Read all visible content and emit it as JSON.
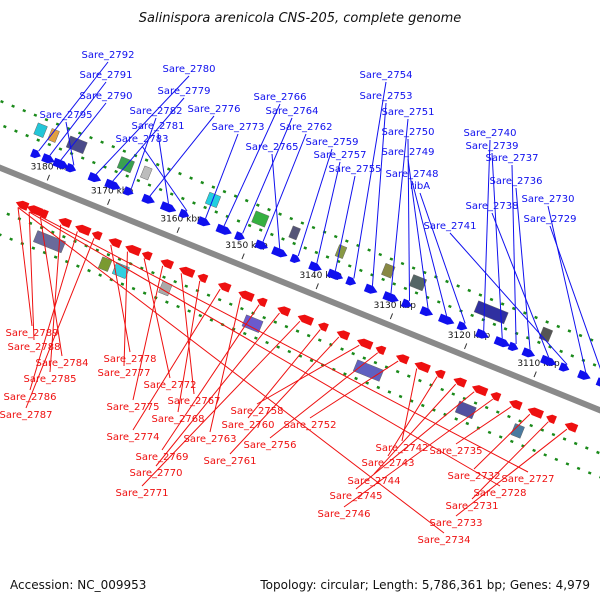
{
  "title": "Salinispora arenicola CNS-205, complete genome",
  "footer": {
    "accession": "Accession: NC_009953",
    "summary": "Topology: circular; Length: 5,786,361 bp; Genes: 4,979"
  },
  "colors": {
    "forward": "#1010ee",
    "reverse": "#ee1010",
    "axis": "#8a8a8a",
    "tick": "#1a8a1a"
  },
  "ticks": [
    "3180 kbp",
    "3170 kbp",
    "3160 kbp",
    "3150 kbp",
    "3140 kbp",
    "3130 kbp",
    "3120 kbp",
    "3110 kbp"
  ],
  "forward_genes": [
    "Sare_2792",
    "Sare_2791",
    "Sare_2790",
    "Sare_2795",
    "Sare_2780",
    "Sare_2779",
    "Sare_2782",
    "Sare_2776",
    "Sare_2781",
    "Sare_2783",
    "Sare_2773",
    "Sare_2766",
    "Sare_2764",
    "Sare_2762",
    "Sare_2765",
    "Sare_2759",
    "Sare_2757",
    "Sare_2755",
    "Sare_2754",
    "Sare_2753",
    "Sare_2751",
    "Sare_2750",
    "Sare_2749",
    "Sare_2748",
    "ribA",
    "Sare_2740",
    "Sare_2739",
    "Sare_2737",
    "Sare_2736",
    "Sare_2738",
    "Sare_2741",
    "Sare_2730",
    "Sare_2729"
  ],
  "reverse_genes": [
    "Sare_2789",
    "Sare_2788",
    "Sare_2784",
    "Sare_2785",
    "Sare_2786",
    "Sare_2787",
    "Sare_2778",
    "Sare_2777",
    "Sare_2772",
    "Sare_2775",
    "Sare_2767",
    "Sare_2768",
    "Sare_2774",
    "Sare_2763",
    "Sare_2769",
    "Sare_2770",
    "Sare_2771",
    "Sare_2760",
    "Sare_2761",
    "Sare_2758",
    "Sare_2756",
    "Sare_2752",
    "Sare_2742",
    "Sare_2743",
    "Sare_2744",
    "Sare_2745",
    "Sare_2746",
    "Sare_2735",
    "Sare_2732",
    "Sare_2731",
    "Sare_2733",
    "Sare_2734",
    "Sare_2728",
    "Sare_2727"
  ]
}
